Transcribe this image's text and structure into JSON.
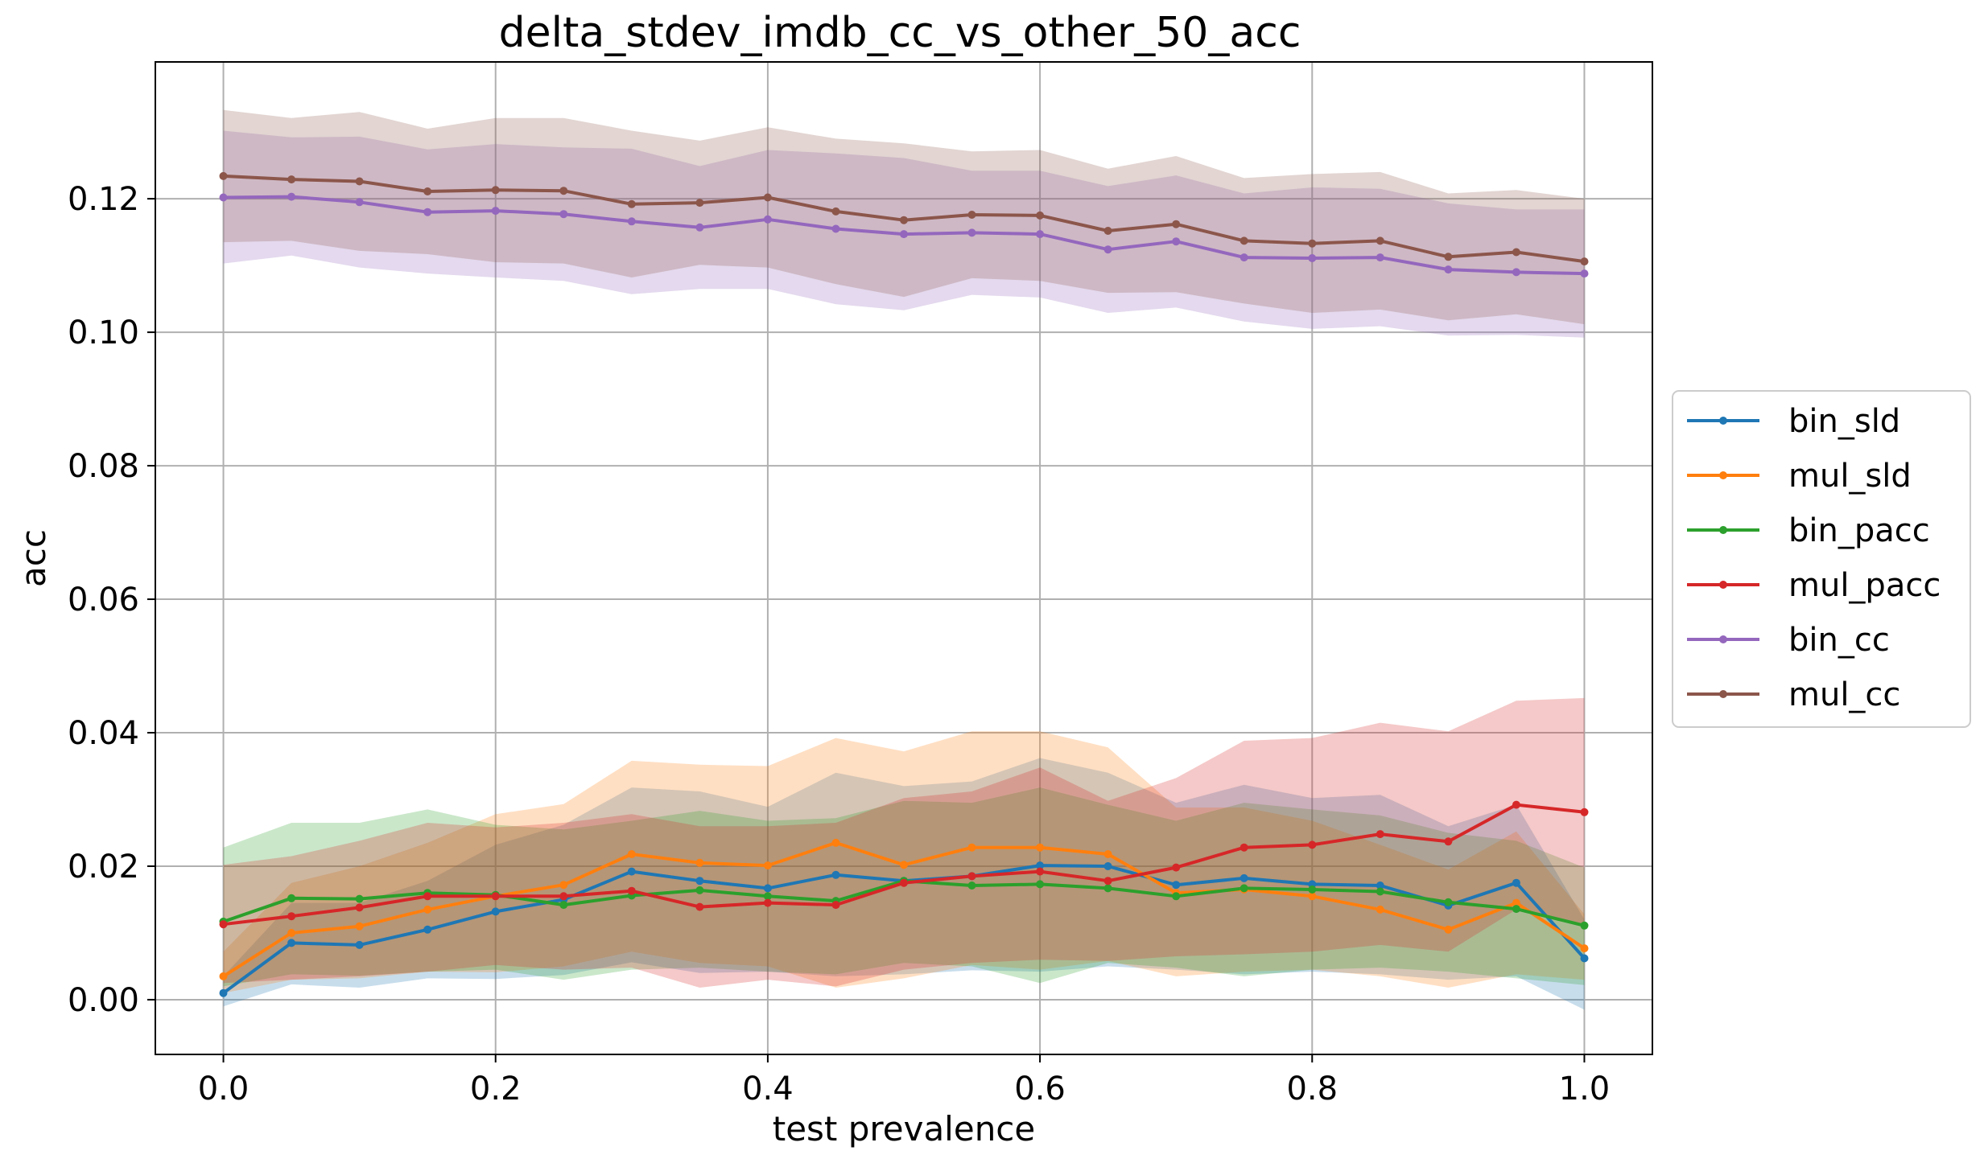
{
  "chart_data": {
    "type": "line",
    "title": "delta_stdev_imdb_cc_vs_other_50_acc",
    "xlabel": "test prevalence",
    "ylabel": "acc",
    "xlim": [
      -0.05,
      1.05
    ],
    "ylim": [
      -0.0082,
      0.1405
    ],
    "xticks": [
      "0.0",
      "0.2",
      "0.4",
      "0.6",
      "0.8",
      "1.0"
    ],
    "xtick_values": [
      0.0,
      0.2,
      0.4,
      0.6,
      0.8,
      1.0
    ],
    "yticks": [
      "0.00",
      "0.02",
      "0.04",
      "0.06",
      "0.08",
      "0.10",
      "0.12"
    ],
    "ytick_values": [
      0.0,
      0.02,
      0.04,
      0.06,
      0.08,
      0.1,
      0.12
    ],
    "grid": true,
    "legend_position": "right-outside",
    "x": [
      0.0,
      0.05,
      0.1,
      0.15,
      0.2,
      0.25,
      0.3,
      0.35,
      0.4,
      0.45,
      0.5,
      0.55,
      0.6,
      0.65,
      0.7,
      0.75,
      0.8,
      0.85,
      0.9,
      0.95,
      1.0
    ],
    "series": [
      {
        "name": "bin_sld",
        "color": "#1f77b4",
        "values": [
          0.001,
          0.0085,
          0.0082,
          0.0105,
          0.0132,
          0.015,
          0.0192,
          0.0178,
          0.0167,
          0.0187,
          0.0178,
          0.0185,
          0.0201,
          0.02,
          0.0172,
          0.0182,
          0.0173,
          0.0171,
          0.0141,
          0.0175,
          0.0062
        ],
        "lower": [
          -0.001,
          0.0023,
          0.0018,
          0.0032,
          0.0031,
          0.0037,
          0.0056,
          0.004,
          0.0042,
          0.0035,
          0.0038,
          0.0044,
          0.0042,
          0.005,
          0.0045,
          0.0038,
          0.0042,
          0.0038,
          0.003,
          0.0035,
          -0.0015
        ],
        "upper": [
          0.0035,
          0.0145,
          0.0145,
          0.0178,
          0.0232,
          0.0262,
          0.0318,
          0.0312,
          0.0289,
          0.034,
          0.032,
          0.0327,
          0.0362,
          0.034,
          0.0295,
          0.0322,
          0.0302,
          0.0307,
          0.026,
          0.0292,
          0.012
        ]
      },
      {
        "name": "mul_sld",
        "color": "#ff7f0e",
        "values": [
          0.0035,
          0.01,
          0.011,
          0.0135,
          0.0155,
          0.0172,
          0.0218,
          0.0205,
          0.0201,
          0.0235,
          0.0202,
          0.0228,
          0.0228,
          0.0218,
          0.016,
          0.0165,
          0.0155,
          0.0135,
          0.0105,
          0.0145,
          0.0077
        ],
        "lower": [
          0.001,
          0.003,
          0.0032,
          0.0042,
          0.0041,
          0.005,
          0.0072,
          0.0055,
          0.005,
          0.0018,
          0.0032,
          0.0052,
          0.0045,
          0.0058,
          0.0035,
          0.0042,
          0.0045,
          0.0035,
          0.0018,
          0.0038,
          0.003
        ],
        "upper": [
          0.0072,
          0.0175,
          0.02,
          0.0235,
          0.0278,
          0.0293,
          0.0358,
          0.0352,
          0.035,
          0.0392,
          0.0372,
          0.0402,
          0.0402,
          0.0378,
          0.0288,
          0.0288,
          0.0268,
          0.0232,
          0.0195,
          0.0252,
          0.0128
        ]
      },
      {
        "name": "bin_pacc",
        "color": "#2ca02c",
        "values": [
          0.0117,
          0.0152,
          0.0151,
          0.016,
          0.0157,
          0.0142,
          0.0156,
          0.0164,
          0.0155,
          0.0148,
          0.0178,
          0.0171,
          0.0173,
          0.0167,
          0.0155,
          0.0167,
          0.0165,
          0.0162,
          0.0146,
          0.0136,
          0.0111
        ],
        "lower": [
          0.002,
          0.0038,
          0.0036,
          0.0042,
          0.0045,
          0.003,
          0.0045,
          0.0048,
          0.0042,
          0.0038,
          0.0055,
          0.005,
          0.0025,
          0.0055,
          0.0048,
          0.0035,
          0.0045,
          0.0048,
          0.0042,
          0.0032,
          0.0022
        ],
        "upper": [
          0.0228,
          0.0265,
          0.0265,
          0.0285,
          0.0262,
          0.0255,
          0.0268,
          0.0283,
          0.0268,
          0.0272,
          0.0298,
          0.0295,
          0.0318,
          0.0292,
          0.0268,
          0.0295,
          0.0285,
          0.0276,
          0.025,
          0.0238,
          0.0198
        ]
      },
      {
        "name": "mul_pacc",
        "color": "#d62728",
        "values": [
          0.0113,
          0.0125,
          0.0138,
          0.0155,
          0.0155,
          0.0155,
          0.0163,
          0.0139,
          0.0145,
          0.0142,
          0.0175,
          0.0185,
          0.0192,
          0.0178,
          0.0198,
          0.0228,
          0.0232,
          0.0248,
          0.0237,
          0.0292,
          0.0281
        ],
        "lower": [
          0.0025,
          0.003,
          0.0035,
          0.0042,
          0.0052,
          0.0045,
          0.0048,
          0.0018,
          0.003,
          0.002,
          0.0045,
          0.0055,
          0.006,
          0.0058,
          0.0065,
          0.0068,
          0.0072,
          0.0082,
          0.0072,
          0.0135,
          0.0112
        ],
        "upper": [
          0.0202,
          0.0215,
          0.0238,
          0.0265,
          0.0258,
          0.0265,
          0.0278,
          0.026,
          0.026,
          0.0265,
          0.0302,
          0.0312,
          0.0348,
          0.0298,
          0.0332,
          0.0388,
          0.0392,
          0.0415,
          0.0402,
          0.0448,
          0.0452
        ]
      },
      {
        "name": "bin_cc",
        "color": "#9467bd",
        "values": [
          0.1202,
          0.1203,
          0.1195,
          0.118,
          0.1182,
          0.1177,
          0.1166,
          0.1157,
          0.1169,
          0.1155,
          0.1147,
          0.1149,
          0.1147,
          0.1124,
          0.1136,
          0.1112,
          0.1111,
          0.1112,
          0.1094,
          0.109,
          0.1088
        ],
        "lower": [
          0.1103,
          0.1115,
          0.1097,
          0.1088,
          0.1082,
          0.1077,
          0.1057,
          0.1065,
          0.1065,
          0.1042,
          0.1033,
          0.1056,
          0.1052,
          0.1029,
          0.1037,
          0.1016,
          0.1005,
          0.1009,
          0.0995,
          0.0996,
          0.0992
        ],
        "upper": [
          0.1302,
          0.1292,
          0.1293,
          0.1274,
          0.1282,
          0.1277,
          0.1275,
          0.1249,
          0.1273,
          0.1268,
          0.1261,
          0.1242,
          0.1242,
          0.1219,
          0.1235,
          0.1208,
          0.1217,
          0.1215,
          0.1193,
          0.1184,
          0.1184
        ]
      },
      {
        "name": "mul_cc",
        "color": "#8c564b",
        "values": [
          0.1234,
          0.1229,
          0.1226,
          0.1211,
          0.1213,
          0.1212,
          0.1192,
          0.1194,
          0.1202,
          0.1181,
          0.1168,
          0.1176,
          0.1175,
          0.1152,
          0.1162,
          0.1137,
          0.1133,
          0.1137,
          0.1113,
          0.112,
          0.1106
        ],
        "lower": [
          0.1135,
          0.1137,
          0.1122,
          0.1117,
          0.1105,
          0.1103,
          0.1082,
          0.1101,
          0.1097,
          0.1072,
          0.1053,
          0.1081,
          0.1077,
          0.1059,
          0.106,
          0.1043,
          0.1029,
          0.1034,
          0.1018,
          0.1027,
          0.1012
        ],
        "upper": [
          0.1333,
          0.1321,
          0.133,
          0.1305,
          0.1321,
          0.1321,
          0.1302,
          0.1287,
          0.1307,
          0.129,
          0.1283,
          0.1271,
          0.1273,
          0.1245,
          0.1264,
          0.1231,
          0.1237,
          0.124,
          0.1208,
          0.1213,
          0.12
        ]
      }
    ]
  }
}
